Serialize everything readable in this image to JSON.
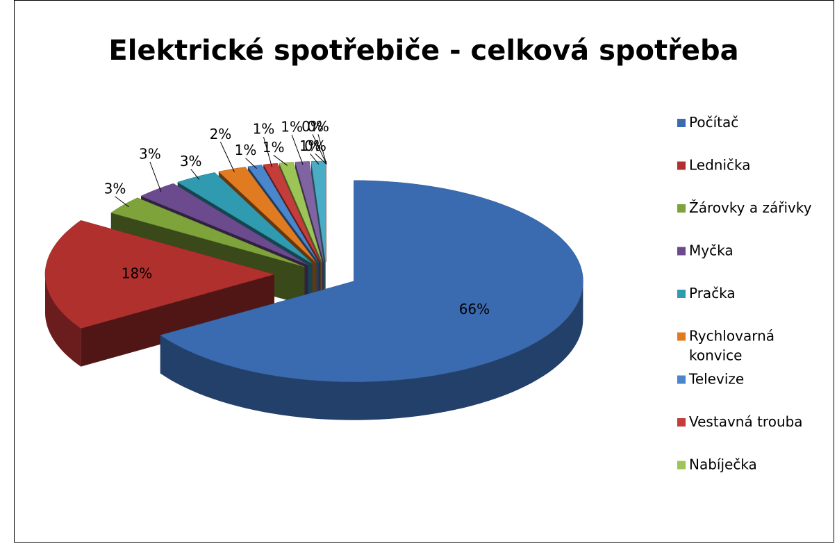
{
  "chart_data": {
    "type": "pie3d",
    "title": "Elektrické spotřebiče - celková spotřeba",
    "categories": [
      "Počítač",
      "Lednička",
      "Žárovky a zářivky",
      "Myčka",
      "Pračka",
      "Rychlovarná konvice",
      "Televize",
      "Vestavná trouba",
      "Nabíječka",
      null,
      null,
      null,
      null,
      null
    ],
    "values": [
      66,
      18,
      3,
      3,
      3,
      2,
      1,
      1,
      1,
      1,
      1,
      0,
      0,
      0
    ],
    "value_labels": [
      "66%",
      "18%",
      "3%",
      "3%",
      "3%",
      "2%",
      "1%",
      "1%",
      "1%",
      "1%",
      "1%",
      "0%",
      "0%",
      "0%"
    ],
    "colors": [
      "#3a6bb0",
      "#b0302e",
      "#7ea33a",
      "#6b4a8e",
      "#2f9ab0",
      "#e07b22",
      "#4a86cc",
      "#c43d3a",
      "#9cc456",
      "#8064a2",
      "#4bacc6",
      "#f79646",
      "#a0b8dc",
      "#d99694"
    ],
    "legend": "right"
  }
}
